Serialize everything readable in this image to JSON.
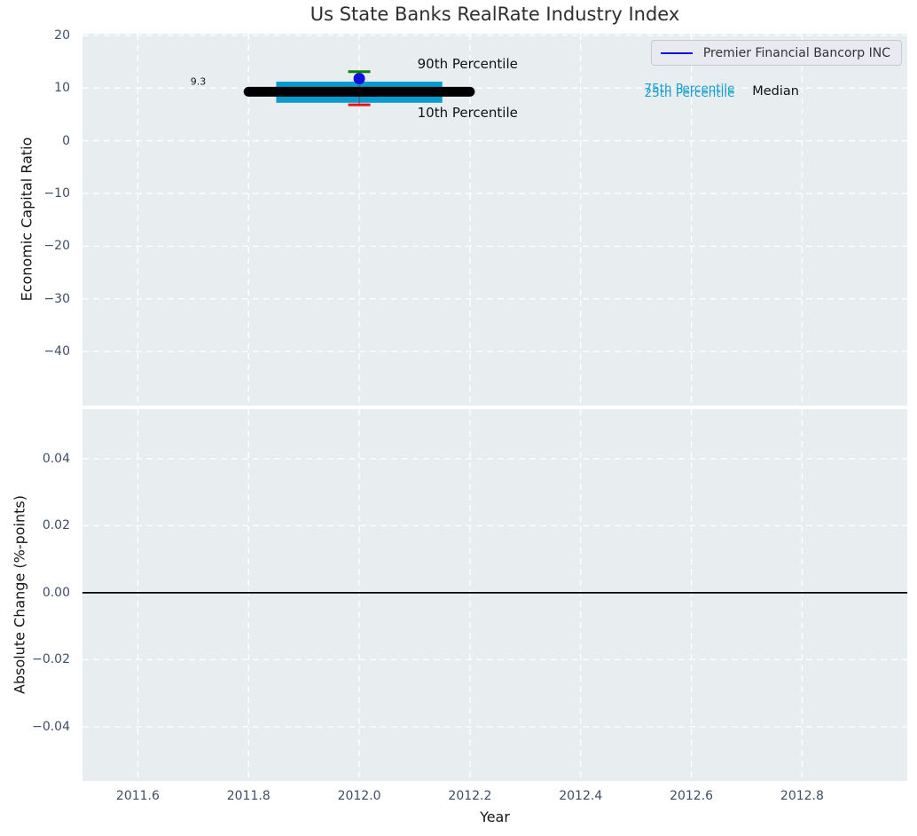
{
  "figure": {
    "title": "Us State Banks RealRate Industry Index",
    "background": "#ffffff",
    "axes_background": "#e8edf0",
    "grid_color": "#ffffff",
    "tick_label_color": "#3f4e66"
  },
  "legend": {
    "label": "Premier Financial Bancorp INC",
    "line_color": "#1010dd",
    "position": "upper right"
  },
  "chart_data": [
    {
      "type": "box-timeline",
      "title": "Us State Banks RealRate Industry Index",
      "ylabel": "Economic Capital Ratio",
      "xlim": [
        2011.5,
        2012.99
      ],
      "ylim": [
        -50.25,
        20.3
      ],
      "grid": true,
      "xticks": [
        2011.6,
        2011.8,
        2012.0,
        2012.2,
        2012.4,
        2012.6,
        2012.8
      ],
      "xtick_labels": [
        "2011.6",
        "2011.8",
        "2012.0",
        "2012.2",
        "2012.4",
        "2012.6",
        "2012.8"
      ],
      "yticks": [
        20,
        10,
        0,
        -10,
        -20,
        -30,
        -40
      ],
      "ytick_labels": [
        "20",
        "10",
        "0",
        "−10",
        "−20",
        "−30",
        "−40"
      ],
      "series": [
        {
          "name": "Premier Financial Bancorp INC",
          "type": "point",
          "x": 2012.0,
          "y": 11.8,
          "color": "#1010dd"
        },
        {
          "name": "Median",
          "type": "thick-line",
          "y": 9.3,
          "x_span": [
            2011.8,
            2012.2
          ],
          "color": "#000000"
        },
        {
          "name": "25th-75th percentile band",
          "type": "band",
          "y_low": 7.2,
          "y_high": 11.2,
          "x_span": [
            2011.85,
            2012.15
          ],
          "color": "#079bcf"
        },
        {
          "name": "90th Percentile",
          "type": "whisker-cap",
          "x": 2012.0,
          "y": 13.1,
          "cap_halfwidth": 0.02,
          "color": "#068206"
        },
        {
          "name": "10th Percentile",
          "type": "whisker-cap",
          "x": 2012.0,
          "y": 6.8,
          "cap_halfwidth": 0.02,
          "color": "#ee1111"
        }
      ],
      "whisker": {
        "x": 2012.0,
        "y_low": 6.8,
        "y_high": 13.1,
        "color": "#555555"
      },
      "annotations": [
        {
          "name": "median-value-annotation",
          "text": "9.3",
          "x": 2011.695,
          "y": 11.15,
          "color": "#1a1a1a",
          "size": 11
        },
        {
          "name": "p90-annotation",
          "text": "90th Percentile",
          "x": 2012.105,
          "y": 14.55,
          "color": "#111111",
          "size": 15
        },
        {
          "name": "p10-annotation",
          "text": "10th Percentile",
          "x": 2012.105,
          "y": 5.25,
          "color": "#111111",
          "size": 15
        },
        {
          "name": "p75-annotation",
          "text": "75th Percentile",
          "x": 2012.515,
          "y": 9.8,
          "color": "#17a0ce",
          "size": 13.5
        },
        {
          "name": "p25-annotation",
          "text": "25th Percentile",
          "x": 2012.515,
          "y": 9.0,
          "color": "#17a0ce",
          "size": 13.5
        },
        {
          "name": "median-text-annotation",
          "text": "Median",
          "x": 2012.71,
          "y": 9.35,
          "color": "#111111",
          "size": 14.5
        }
      ]
    },
    {
      "type": "line",
      "ylabel": "Absolute Change (%-points)",
      "xlabel": "Year",
      "xlim": [
        2011.5,
        2012.99
      ],
      "ylim": [
        -0.0562,
        0.0548
      ],
      "grid": true,
      "xticks": [
        2011.6,
        2011.8,
        2012.0,
        2012.2,
        2012.4,
        2012.6,
        2012.8
      ],
      "xtick_labels": [
        "2011.6",
        "2011.8",
        "2012.0",
        "2012.2",
        "2012.4",
        "2012.6",
        "2012.8"
      ],
      "yticks": [
        0.04,
        0.02,
        0,
        -0.02,
        -0.04
      ],
      "ytick_labels": [
        "0.04",
        "0.02",
        "0.00",
        "−0.02",
        "−0.04"
      ],
      "zero_line": {
        "y": 0,
        "color": "#000000",
        "width": 1.8
      }
    }
  ]
}
